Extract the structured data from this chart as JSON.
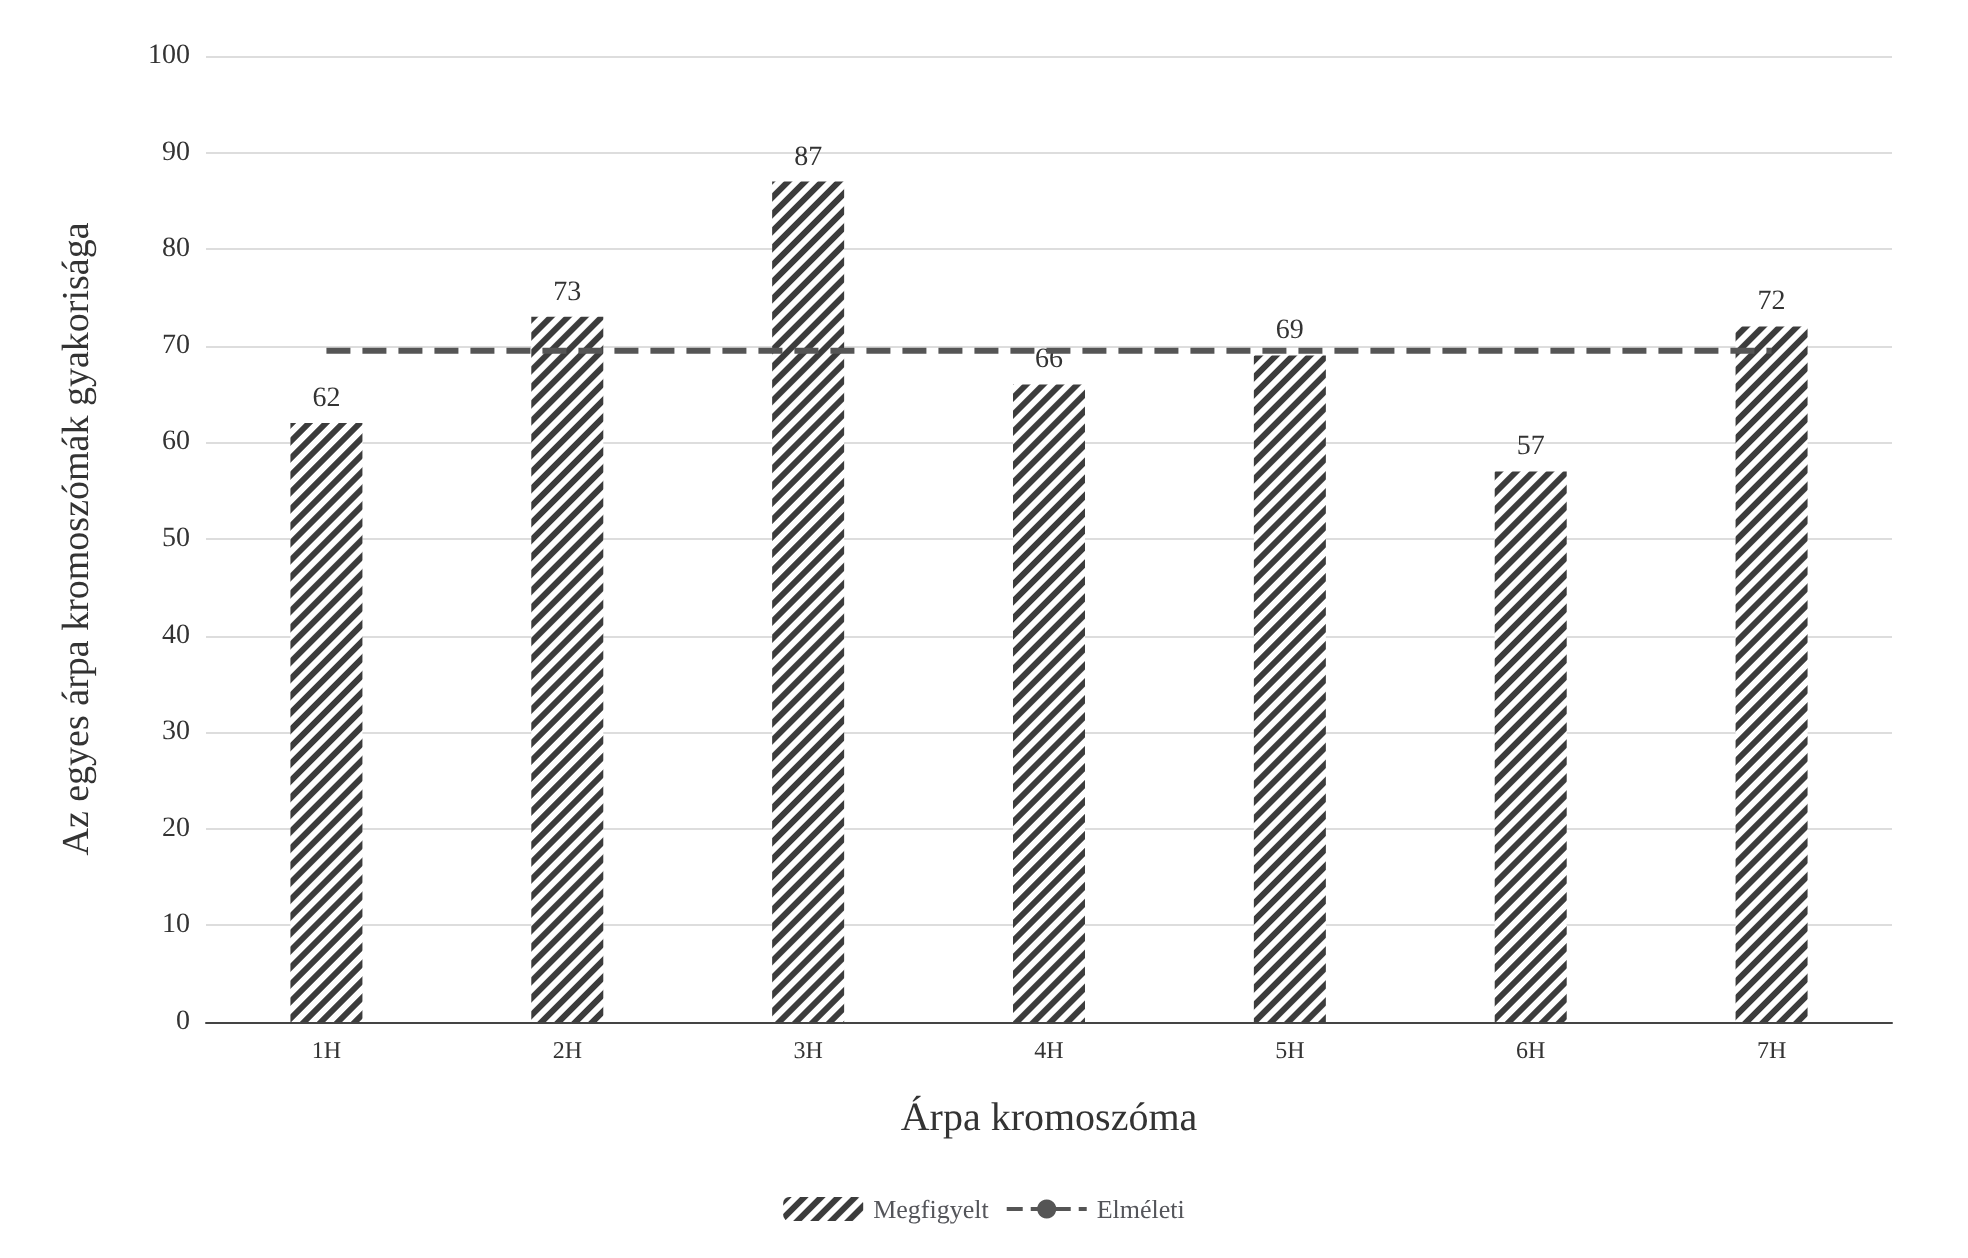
{
  "chart_data": {
    "type": "bar",
    "xlabel": "Árpa kromoszóma",
    "ylabel": "Az egyes árpa kromoszómák gyakorisága",
    "categories": [
      "1H",
      "2H",
      "3H",
      "4H",
      "5H",
      "6H",
      "7H"
    ],
    "series": [
      {
        "name": "Megfigyelt",
        "color": "#3c3c3c",
        "values": [
          62,
          73,
          87,
          66,
          69,
          57,
          72
        ],
        "value_labels": [
          "62",
          "73",
          "87",
          "66",
          "69",
          "57",
          "72"
        ]
      },
      {
        "name": "Elméleti",
        "type": "line",
        "color": "#555555",
        "line_style": "dashed",
        "marker": "none",
        "values": [
          69.5,
          69.5,
          69.5,
          69.5,
          69.5,
          69.5,
          69.5
        ]
      }
    ],
    "ylim": [
      0,
      100
    ],
    "yticks": [
      0,
      10,
      20,
      30,
      40,
      50,
      60,
      70,
      80,
      90,
      100
    ],
    "grid": "y",
    "legend": "bottom"
  }
}
